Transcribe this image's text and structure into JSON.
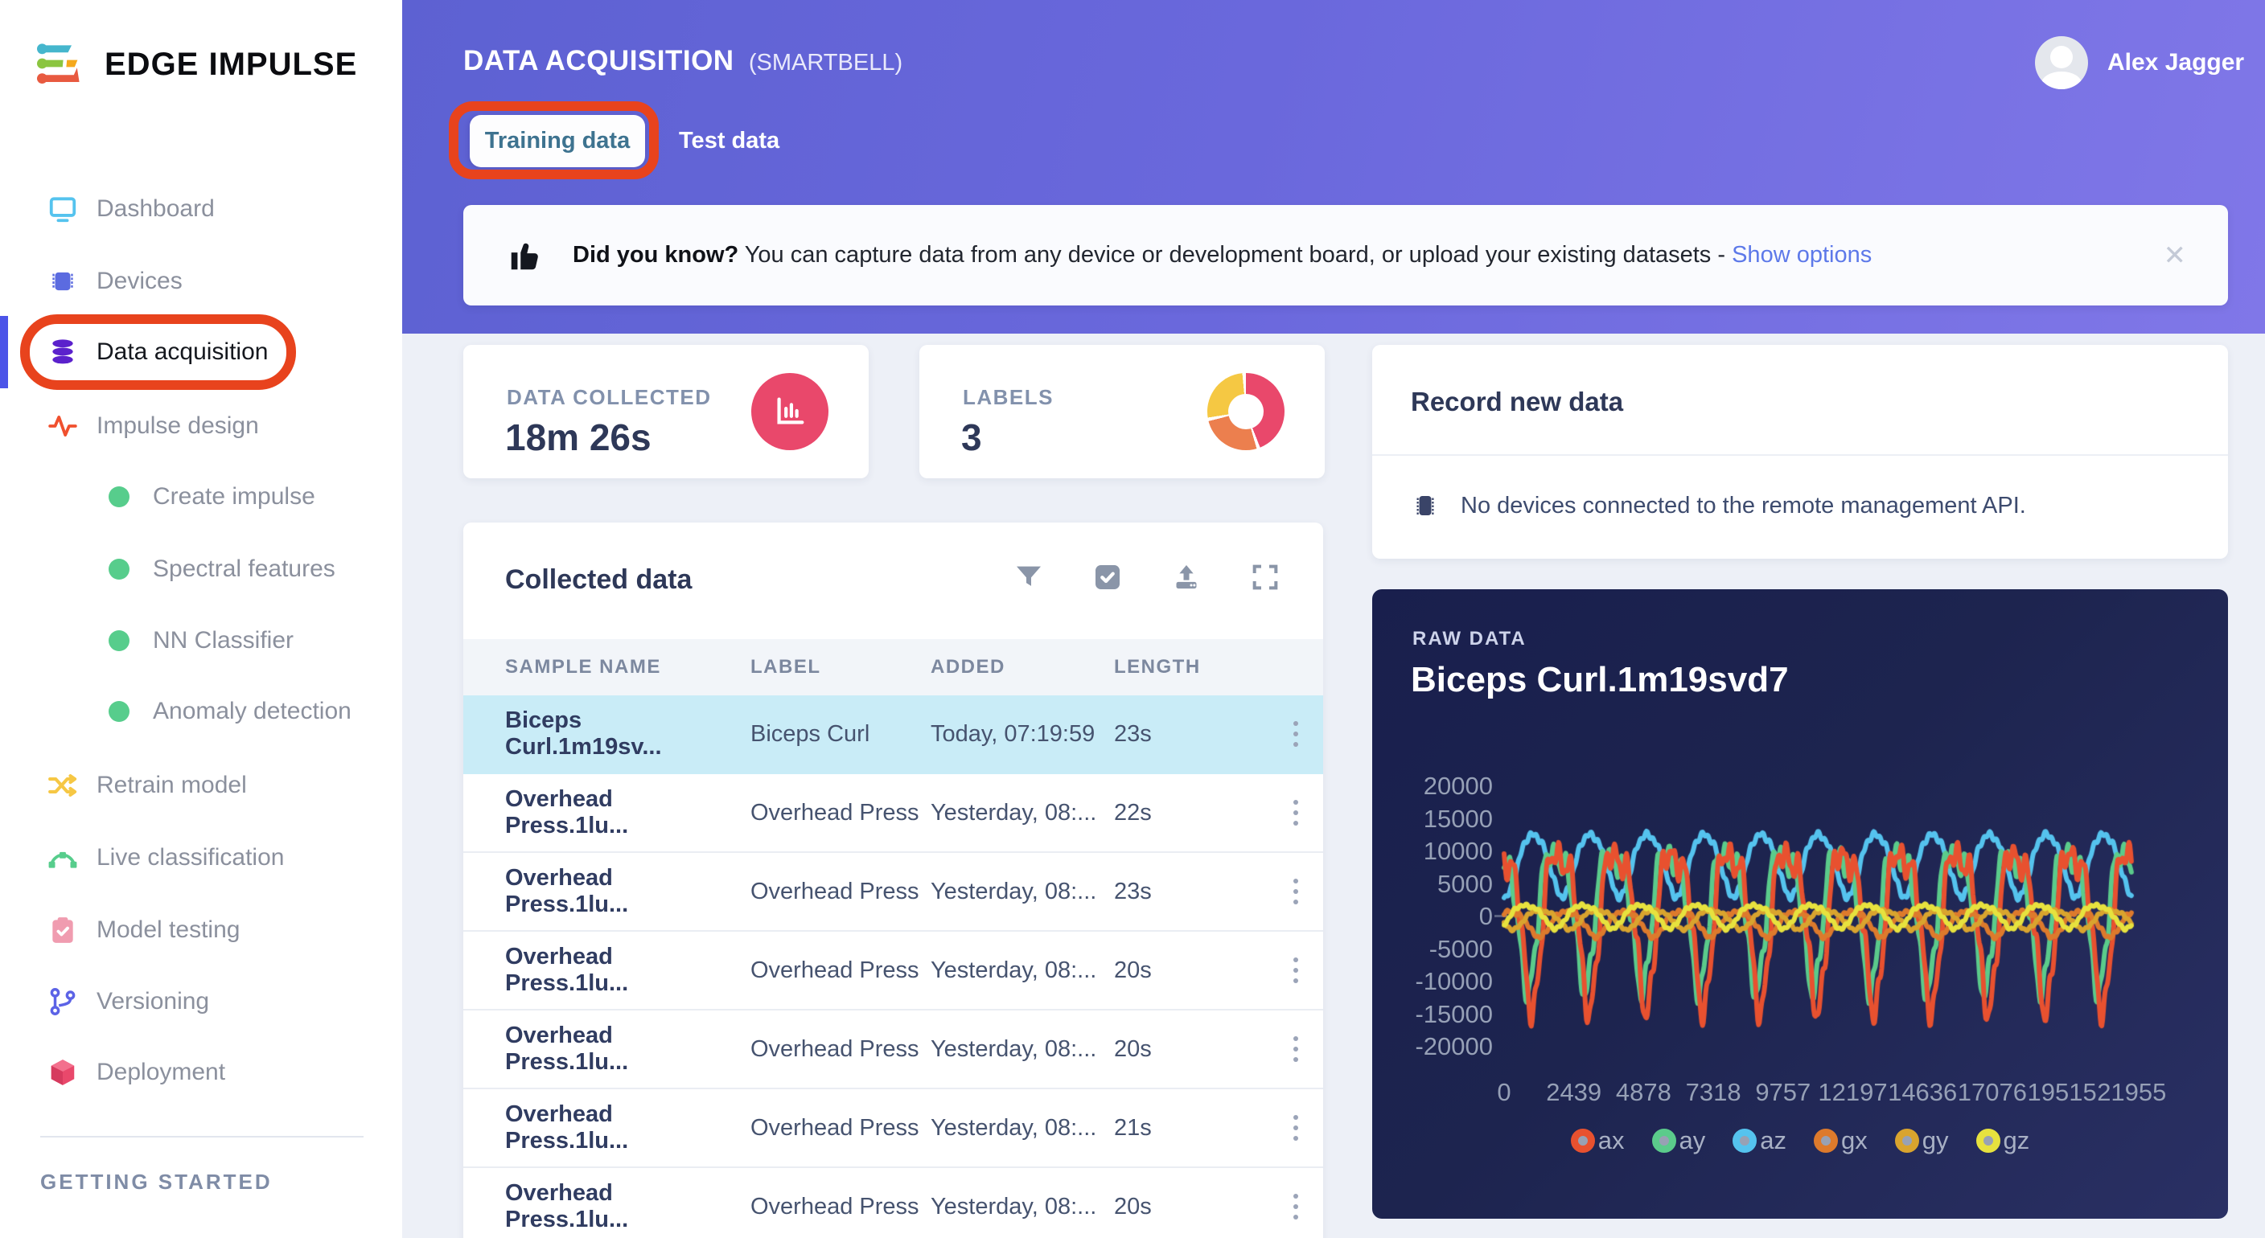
{
  "app": {
    "logo_text": "EDGE IMPULSE"
  },
  "sidebar": {
    "items": [
      {
        "label": "Dashboard"
      },
      {
        "label": "Devices"
      },
      {
        "label": "Data acquisition",
        "active": true
      },
      {
        "label": "Impulse design"
      },
      {
        "label": "Create impulse"
      },
      {
        "label": "Spectral features"
      },
      {
        "label": "NN Classifier"
      },
      {
        "label": "Anomaly detection"
      },
      {
        "label": "Retrain model"
      },
      {
        "label": "Live classification"
      },
      {
        "label": "Model testing"
      },
      {
        "label": "Versioning"
      },
      {
        "label": "Deployment"
      }
    ],
    "section_label": "GETTING STARTED"
  },
  "header": {
    "title": "DATA ACQUISITION",
    "project": "(SMARTBELL)",
    "tab_training": "Training data",
    "tab_test": "Test data",
    "user_name": "Alex Jagger"
  },
  "banner": {
    "bold": "Did you know?",
    "text": " You can capture data from any device or development board, or upload your existing datasets - ",
    "link_label": "Show options",
    "close_glyph": "✕"
  },
  "stats": {
    "data_collected": {
      "label": "DATA COLLECTED",
      "value": "18m 26s"
    },
    "labels": {
      "label": "LABELS",
      "value": "3",
      "donut_segments": [
        {
          "color": "#e9486b",
          "pct": 44
        },
        {
          "color": "#ec7f4e",
          "pct": 27
        },
        {
          "color": "#f5c843",
          "pct": 26
        }
      ]
    }
  },
  "record_panel": {
    "title": "Record new data",
    "message": "No devices connected to the remote management API."
  },
  "collected": {
    "title": "Collected data",
    "columns": [
      "SAMPLE NAME",
      "LABEL",
      "ADDED",
      "LENGTH"
    ],
    "rows": [
      {
        "sample_name": "Biceps Curl.1m19sv...",
        "label": "Biceps Curl",
        "added": "Today, 07:19:59",
        "length": "23s",
        "selected": true
      },
      {
        "sample_name": "Overhead Press.1lu...",
        "label": "Overhead Press",
        "added": "Yesterday, 08:...",
        "length": "22s"
      },
      {
        "sample_name": "Overhead Press.1lu...",
        "label": "Overhead Press",
        "added": "Yesterday, 08:...",
        "length": "23s"
      },
      {
        "sample_name": "Overhead Press.1lu...",
        "label": "Overhead Press",
        "added": "Yesterday, 08:...",
        "length": "20s"
      },
      {
        "sample_name": "Overhead Press.1lu...",
        "label": "Overhead Press",
        "added": "Yesterday, 08:...",
        "length": "20s"
      },
      {
        "sample_name": "Overhead Press.1lu...",
        "label": "Overhead Press",
        "added": "Yesterday, 08:...",
        "length": "21s"
      },
      {
        "sample_name": "Overhead Press.1lu...",
        "label": "Overhead Press",
        "added": "Yesterday, 08:...",
        "length": "20s"
      }
    ]
  },
  "chart_data": {
    "type": "line",
    "panel_label": "RAW DATA",
    "title": "Biceps Curl.1m19svd7",
    "xlabel": "",
    "ylabel": "",
    "xlim": [
      0,
      21955
    ],
    "ylim": [
      -20000,
      20000
    ],
    "x_ticks": [
      0,
      2439,
      4878,
      7318,
      9757,
      12197,
      14636,
      17076,
      19515,
      21955
    ],
    "y_ticks": [
      20000,
      15000,
      10000,
      5000,
      0,
      -5000,
      -10000,
      -15000,
      -20000
    ],
    "grid": false,
    "legend_position": "bottom",
    "background": "#1b2150",
    "draw_order": [
      "az",
      "ay",
      "ax",
      "gx",
      "gy",
      "gz"
    ],
    "series": [
      {
        "name": "ax",
        "color": "#e8512f",
        "approx_range": [
          -17000,
          19000
        ],
        "offset": 600,
        "amplitude": 17000,
        "period_ms": 1996,
        "phase": 1.7,
        "h1": 0.68,
        "h2": 0.22,
        "h5": 0.1,
        "noise": 0.05
      },
      {
        "name": "ay",
        "color": "#5bcb8b",
        "approx_range": [
          -14000,
          18500
        ],
        "offset": 1800,
        "amplitude": 14800,
        "period_ms": 1996,
        "phase": 2.15,
        "h1": 0.68,
        "h2": 0.22,
        "h5": 0.1,
        "noise": 0.05
      },
      {
        "name": "az",
        "color": "#55c3ee",
        "approx_range": [
          2000,
          15500
        ],
        "offset": 8300,
        "amplitude": 5600,
        "period_ms": 1996,
        "phase": 4.6,
        "h1": 0.85,
        "h2": 0.1,
        "h5": 0.04,
        "noise": 0.06
      },
      {
        "name": "gx",
        "color": "#dd7a2c",
        "approx_range": [
          -3500,
          1700
        ],
        "offset": -900,
        "amplitude": 2400,
        "period_ms": 1996,
        "phase": 0.9,
        "h1": 0.8,
        "h2": 0.15,
        "h5": 0.05,
        "noise": 0.09
      },
      {
        "name": "gy",
        "color": "#d9a42e",
        "approx_range": [
          -2200,
          1500
        ],
        "offset": -300,
        "amplitude": 1800,
        "period_ms": 1996,
        "phase": 3.8,
        "h1": 0.8,
        "h2": 0.15,
        "h5": 0.05,
        "noise": 0.09
      },
      {
        "name": "gz",
        "color": "#e7e23e",
        "approx_range": [
          -2100,
          2500
        ],
        "offset": 200,
        "amplitude": 2200,
        "period_ms": 1996,
        "phase": 5.4,
        "h1": 0.8,
        "h2": 0.15,
        "h5": 0.05,
        "noise": 0.09
      }
    ]
  }
}
